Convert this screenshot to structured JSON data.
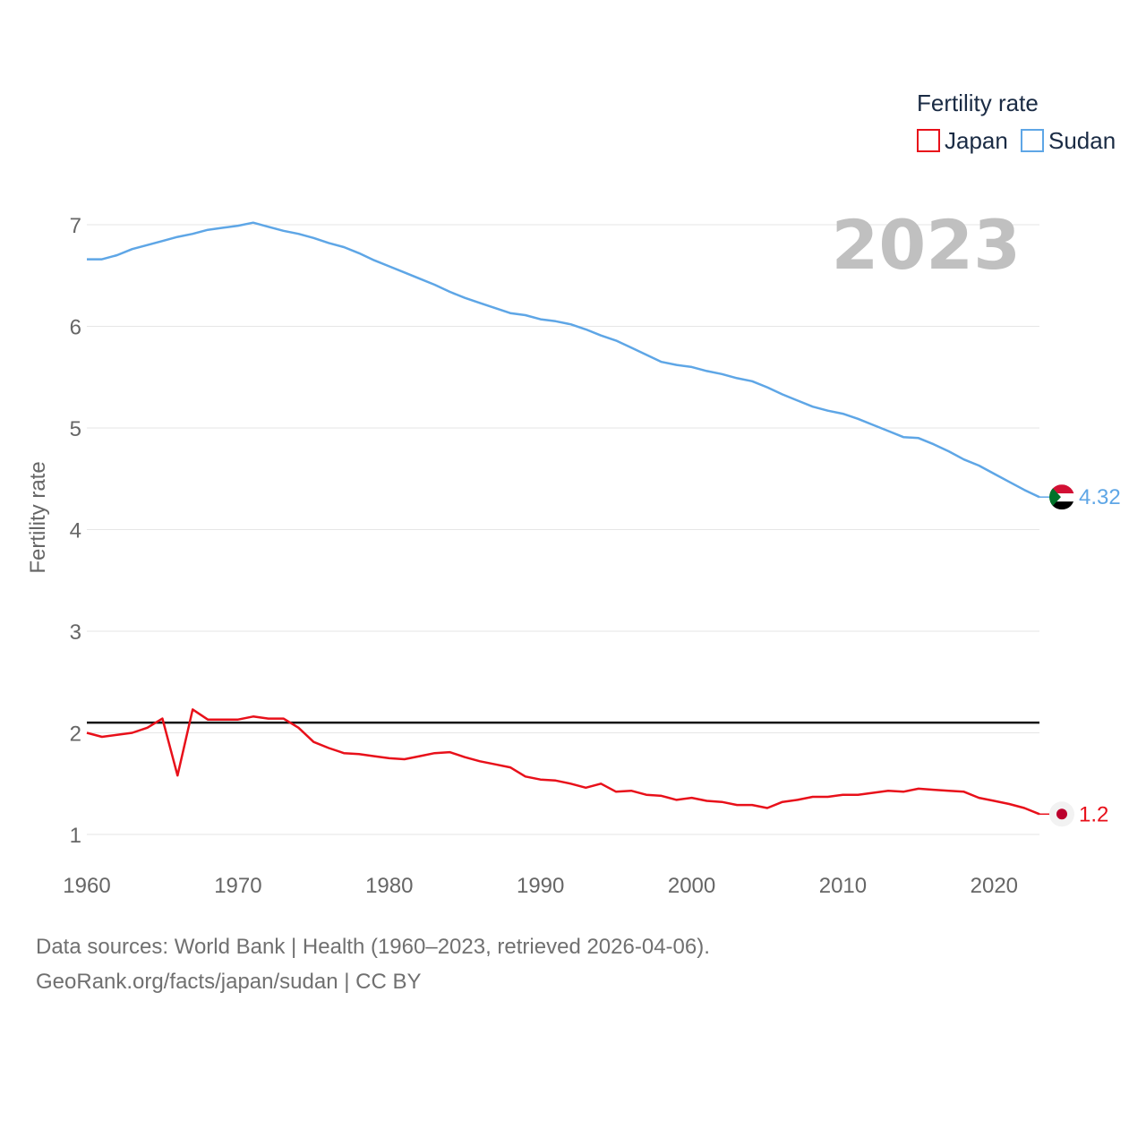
{
  "chart_data": {
    "type": "line",
    "title": "",
    "ylabel": "Fertility rate",
    "xlabel": "",
    "highlight_year": "2023",
    "legend_title": "Fertility rate",
    "xlim": [
      1960,
      2023
    ],
    "ylim": [
      0.7,
      7.3
    ],
    "x_ticks": [
      1960,
      1970,
      1980,
      1990,
      2000,
      2010,
      2020
    ],
    "y_ticks": [
      1,
      2,
      3,
      4,
      5,
      6,
      7
    ],
    "reference_line": 2.1,
    "series": [
      {
        "name": "Japan",
        "color": "#e8101a",
        "flag": "japan-flag",
        "end_label": "1.2",
        "x": [
          1960,
          1961,
          1962,
          1963,
          1964,
          1965,
          1966,
          1967,
          1968,
          1969,
          1970,
          1971,
          1972,
          1973,
          1974,
          1975,
          1976,
          1977,
          1978,
          1979,
          1980,
          1981,
          1982,
          1983,
          1984,
          1985,
          1986,
          1987,
          1988,
          1989,
          1990,
          1991,
          1992,
          1993,
          1994,
          1995,
          1996,
          1997,
          1998,
          1999,
          2000,
          2001,
          2002,
          2003,
          2004,
          2005,
          2006,
          2007,
          2008,
          2009,
          2010,
          2011,
          2012,
          2013,
          2014,
          2015,
          2016,
          2017,
          2018,
          2019,
          2020,
          2021,
          2022,
          2023
        ],
        "values": [
          2.0,
          1.96,
          1.98,
          2.0,
          2.05,
          2.14,
          1.58,
          2.23,
          2.13,
          2.13,
          2.13,
          2.16,
          2.14,
          2.14,
          2.05,
          1.91,
          1.85,
          1.8,
          1.79,
          1.77,
          1.75,
          1.74,
          1.77,
          1.8,
          1.81,
          1.76,
          1.72,
          1.69,
          1.66,
          1.57,
          1.54,
          1.53,
          1.5,
          1.46,
          1.5,
          1.42,
          1.43,
          1.39,
          1.38,
          1.34,
          1.36,
          1.33,
          1.32,
          1.29,
          1.29,
          1.26,
          1.32,
          1.34,
          1.37,
          1.37,
          1.39,
          1.39,
          1.41,
          1.43,
          1.42,
          1.45,
          1.44,
          1.43,
          1.42,
          1.36,
          1.33,
          1.3,
          1.26,
          1.2
        ]
      },
      {
        "name": "Sudan",
        "color": "#5ea6e6",
        "flag": "sudan-flag",
        "end_label": "4.32",
        "x": [
          1960,
          1961,
          1962,
          1963,
          1964,
          1965,
          1966,
          1967,
          1968,
          1969,
          1970,
          1971,
          1972,
          1973,
          1974,
          1975,
          1976,
          1977,
          1978,
          1979,
          1980,
          1981,
          1982,
          1983,
          1984,
          1985,
          1986,
          1987,
          1988,
          1989,
          1990,
          1991,
          1992,
          1993,
          1994,
          1995,
          1996,
          1997,
          1998,
          1999,
          2000,
          2001,
          2002,
          2003,
          2004,
          2005,
          2006,
          2007,
          2008,
          2009,
          2010,
          2011,
          2012,
          2013,
          2014,
          2015,
          2016,
          2017,
          2018,
          2019,
          2020,
          2021,
          2022,
          2023
        ],
        "values": [
          6.66,
          6.66,
          6.7,
          6.76,
          6.8,
          6.84,
          6.88,
          6.91,
          6.95,
          6.97,
          6.99,
          7.02,
          6.98,
          6.94,
          6.91,
          6.87,
          6.82,
          6.78,
          6.72,
          6.65,
          6.59,
          6.53,
          6.47,
          6.41,
          6.34,
          6.28,
          6.23,
          6.18,
          6.13,
          6.11,
          6.07,
          6.05,
          6.02,
          5.97,
          5.91,
          5.86,
          5.79,
          5.72,
          5.65,
          5.62,
          5.6,
          5.56,
          5.53,
          5.49,
          5.46,
          5.4,
          5.33,
          5.27,
          5.21,
          5.17,
          5.14,
          5.09,
          5.03,
          4.97,
          4.91,
          4.9,
          4.84,
          4.77,
          4.69,
          4.63,
          4.55,
          4.47,
          4.39,
          4.32
        ]
      }
    ]
  },
  "footer": {
    "line1": "Data sources: World Bank | Health (1960–2023, retrieved 2026-04-06).",
    "line2": "GeoRank.org/facts/japan/sudan | CC BY"
  }
}
